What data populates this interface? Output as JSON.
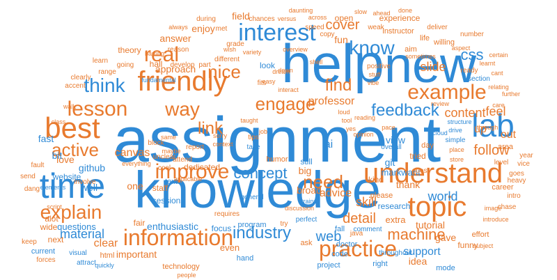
{
  "colors": {
    "blue": "#2f8ad6",
    "orange": "#e87a2e",
    "light_blue": "#7cb8e8",
    "light_orange": "#f2b07c",
    "grey": "#b0b6bd"
  },
  "words": {
    "assignment": "assignment",
    "knowledge": "knowledge",
    "help": "help",
    "new": "new",
    "time": "time",
    "best": "best",
    "lab": "lab",
    "understand": "understand",
    "topic": "topic",
    "friendly": "friendly",
    "interest": "interest",
    "information": "information",
    "practice": "practice",
    "improve": "improve",
    "example": "example",
    "know": "know",
    "lesson": "lesson",
    "way": "way",
    "engage": "engage",
    "real": "real",
    "think": "think",
    "explain": "explain",
    "active": "active",
    "feedback": "feedback",
    "concept": "concept",
    "need": "need",
    "nice": "nice",
    "find": "find",
    "link": "link",
    "industry": "industry",
    "machine": "machine",
    "cover": "cover",
    "follow": "follow",
    "detail": "detail",
    "skill": "skill",
    "world": "world",
    "content": "content",
    "css": "css",
    "slide": "slide",
    "feel": "feel",
    "professor": "professor",
    "web": "web",
    "support": "support",
    "advice": "advice",
    "tutorial": "tutorial",
    "material": "material",
    "enthusiastic": "enthusiastic",
    "clear": "clear",
    "important": "important",
    "canvas": "canvas",
    "github": "github",
    "website": "website",
    "love": "love",
    "enjoy": "enjoy",
    "answer": "answer",
    "approach": "approach",
    "questions": "questions",
    "one": "one",
    "well": "well",
    "staff": "staff",
    "dedicated": "dedicated",
    "program": "program",
    "sessions": "sessions",
    "idea": "idea",
    "fun": "fun",
    "ai": "ai",
    "git": "git",
    "view": "view",
    "up": "up",
    "out": "out",
    "still": "still",
    "big": "big",
    "mark": "mark",
    "want": "want",
    "thank": "thank",
    "gave": "gave",
    "hall": "hall",
    "kind": "kind",
    "look": "look",
    "field": "field",
    "open": "open",
    "experience": "experience",
    "instructor": "instructor",
    "theory": "theory",
    "broad": "broad",
    "fair": "fair",
    "next": "next",
    "even": "even",
    "extra": "extra",
    "funny": "funny",
    "bit": "bit",
    "fast": "fast",
    "alot": "alot",
    "wide": "wide",
    "focus": "focus",
    "hand": "hand",
    "ask": "ask",
    "code": "code",
    "research": "research",
    "project": "project",
    "right": "right",
    "effort": "effort",
    "mode": "mode",
    "humor": "humor",
    "tried": "tried",
    "day": "day",
    "life": "life",
    "aim": "aim",
    "guest": "guest",
    "please": "please",
    "level": "level",
    "area": "area",
    "career": "career",
    "text": "text",
    "html": "html",
    "technology": "technology",
    "current": "current",
    "keep": "keep",
    "forces": "forces",
    "visual": "visual",
    "requires": "requires",
    "general": "general",
    "take": "take",
    "develop": "develop",
    "part": "part",
    "simple": "simple",
    "willing": "willing",
    "positive": "positive",
    "different": "different",
    "during": "during",
    "grade": "grade",
    "number": "number",
    "section": "section",
    "deliver": "deliver",
    "goes": "goes",
    "chase": "chase",
    "intro": "intro",
    "heavy": "heavy",
    "doctor": "doctor",
    "comment": "comment",
    "perfect": "perfect",
    "report": "report",
    "attend": "attend",
    "unclear": "unclear",
    "cool": "cool",
    "applicable": "applicable",
    "block": "block",
    "everything": "everything",
    "maybe": "maybe",
    "send": "send",
    "fault": "fault",
    "dang": "dang",
    "involve": "involve",
    "speed": "speed",
    "reason": "reason",
    "copy": "copy",
    "weak": "weak",
    "met": "met",
    "chances": "chances",
    "range": "range",
    "going": "going",
    "clearly": "clearly",
    "accent": "accent",
    "learn": "learn",
    "ready": "ready",
    "overall": "overall",
    "throughout": "throughout",
    "attract": "attract",
    "quickly": "quickly",
    "people": "people",
    "fall": "fall",
    "try": "try",
    "java": "java",
    "discussion": "discussion",
    "trains": "trains",
    "tips": "tips",
    "job": "job",
    "same": "same",
    "vice": "vice",
    "year": "year",
    "subject": "subject",
    "introduce": "introduce",
    "through": "through",
    "place": "place",
    "image": "image",
    "store": "store",
    "structure": "structure",
    "cloud": "cloud",
    "drive": "drive",
    "aspect": "aspect",
    "learnt": "learnt",
    "certain": "certain",
    "review": "review",
    "care": "care",
    "relating": "relating",
    "further": "further",
    "sometimes": "sometimes",
    "stuff": "stuff",
    "vibe": "vibe",
    "interact": "interact",
    "overview": "overview",
    "fundamental": "fundamental",
    "wish": "wish",
    "variety": "variety",
    "daunting": "daunting",
    "versus": "versus",
    "slow": "slow",
    "ahead": "ahead",
    "done": "done",
    "across": "across",
    "always": "always",
    "dream": "dream",
    "easy": "easy",
    "taught": "taught",
    "opinion": "opinion",
    "yes": "yes",
    "cant": "cant",
    "pace": "pace",
    "reading": "reading",
    "tool": "tool",
    "loud": "loud",
    "sorry": "sorry",
    "context": "context",
    "elements": "elements",
    "script": "script",
    "down": "down",
    "fits": "fits",
    "walk": "walk",
    "class": "class",
    "barring": "barring",
    "shell": "shell"
  }
}
